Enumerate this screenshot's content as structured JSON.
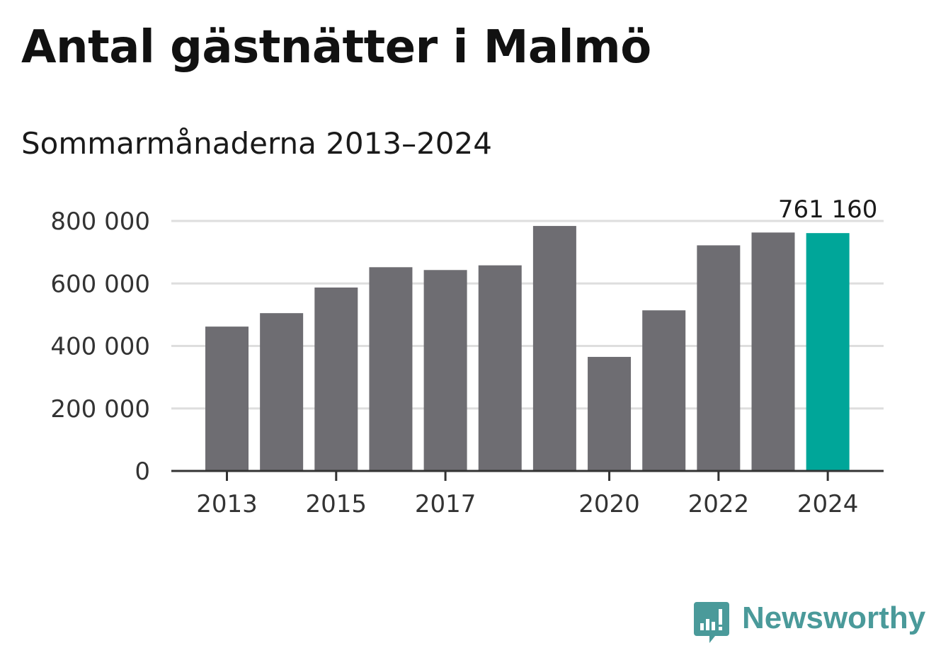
{
  "title": "Antal gästnätter i Malmö",
  "subtitle": "Sommarmånaderna 2013–2024",
  "colors": {
    "bar": "#6e6d72",
    "highlight": "#00a699",
    "grid": "#dedede",
    "axis": "#333333",
    "logo": "#4a9a9a"
  },
  "chart_data": {
    "type": "bar",
    "categories": [
      "2013",
      "2014",
      "2015",
      "2016",
      "2017",
      "2018",
      "2019",
      "2020",
      "2021",
      "2022",
      "2023",
      "2024"
    ],
    "values": [
      462000,
      505000,
      587000,
      652000,
      643000,
      658000,
      784000,
      365000,
      514000,
      722000,
      763000,
      761160
    ],
    "highlight_index": 11,
    "value_label": "761 160",
    "x_tick_labels": [
      "2013",
      "2015",
      "2017",
      "2020",
      "2022",
      "2024"
    ],
    "y_ticks": [
      0,
      200000,
      400000,
      600000,
      800000
    ],
    "y_tick_labels": [
      "0",
      "200 000",
      "400 000",
      "600 000",
      "800 000"
    ],
    "ylim": [
      0,
      800000
    ],
    "grid": true
  },
  "logo": {
    "text": "Newsworthy",
    "icon": "newsworthy-chart-icon"
  }
}
